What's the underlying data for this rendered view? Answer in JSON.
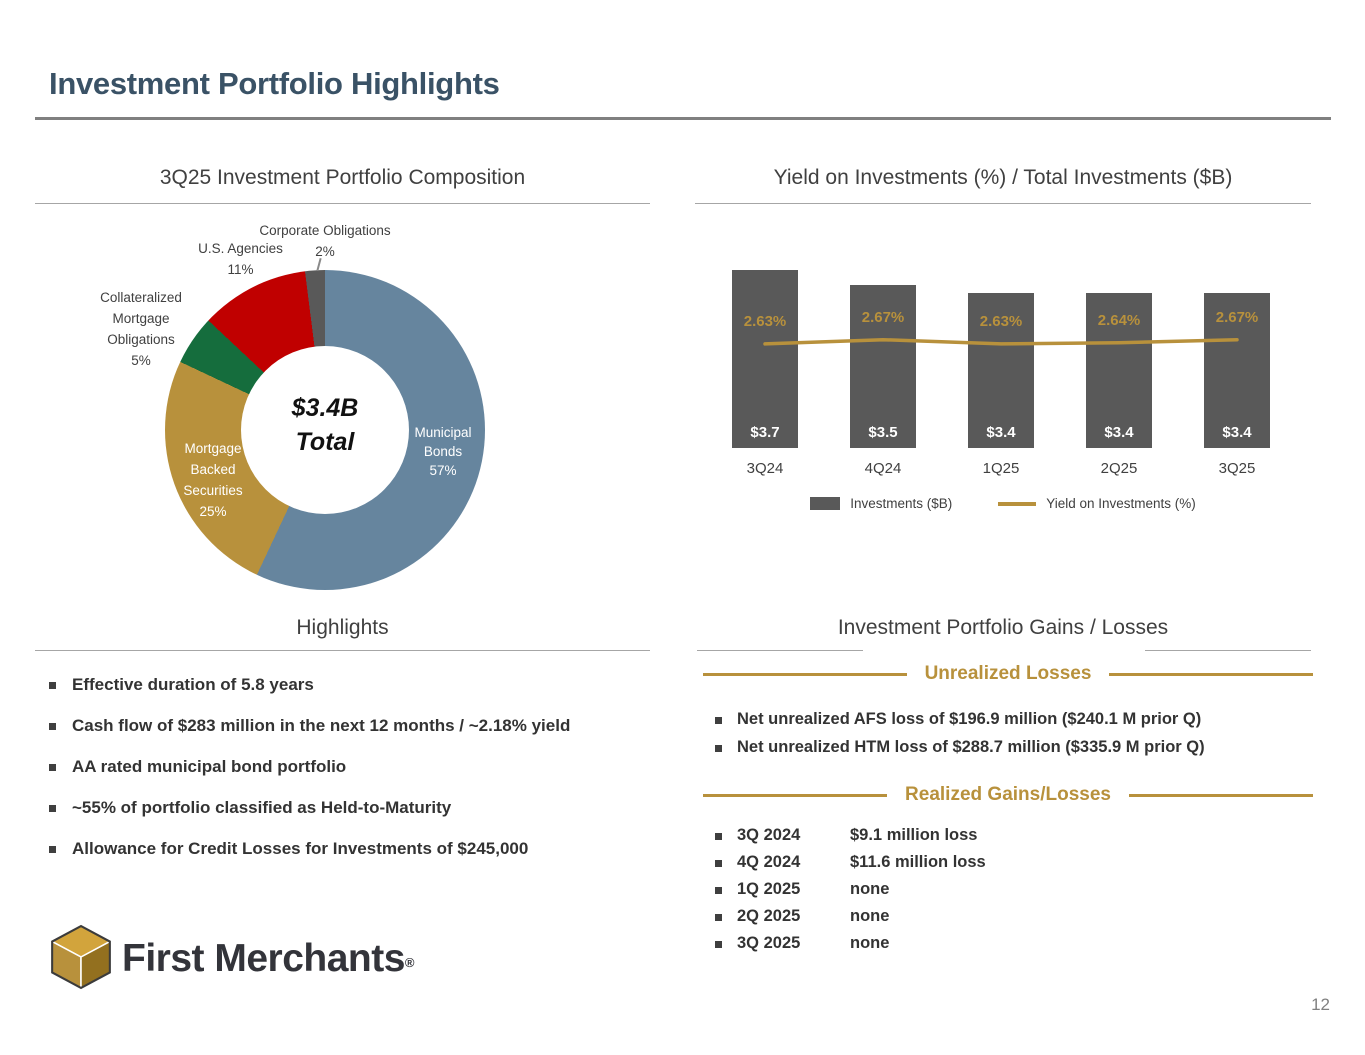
{
  "slide": {
    "title": "Investment Portfolio Highlights",
    "page_number": "12"
  },
  "chart_data": [
    {
      "type": "pie",
      "title": "3Q25 Investment Portfolio Composition",
      "center": {
        "value": "$3.4B",
        "label": "Total"
      },
      "slices": [
        {
          "label": "Municipal Bonds",
          "pct": "57%",
          "value": 57,
          "color": "#66859E"
        },
        {
          "label": "Mortgage Backed Securities",
          "pct": "25%",
          "value": 25,
          "color": "#B8913C"
        },
        {
          "label": "Collateralized Mortgage Obligations",
          "pct": "5%",
          "value": 5,
          "color": "#156D3D"
        },
        {
          "label": "U.S. Agencies",
          "pct": "11%",
          "value": 11,
          "color": "#C00000"
        },
        {
          "label": "Corporate Obligations",
          "pct": "2%",
          "value": 2,
          "color": "#595959"
        }
      ]
    },
    {
      "type": "bar",
      "title": "Yield on Investments (%) / Total Investments ($B)",
      "categories": [
        "3Q24",
        "4Q24",
        "1Q25",
        "2Q25",
        "3Q25"
      ],
      "series": [
        {
          "name": "Investments ($B)",
          "chart": "bar",
          "values": [
            3.7,
            3.5,
            3.4,
            3.4,
            3.4
          ],
          "labels": [
            "$3.7",
            "$3.5",
            "$3.4",
            "$3.4",
            "$3.4"
          ],
          "color": "#595959"
        },
        {
          "name": "Yield on Investments (%)",
          "chart": "line",
          "values": [
            2.63,
            2.67,
            2.63,
            2.64,
            2.67
          ],
          "labels": [
            "2.63%",
            "2.67%",
            "2.63%",
            "2.64%",
            "2.67%"
          ],
          "color": "#B8913C"
        }
      ],
      "legend_position": "bottom",
      "grid": false
    }
  ],
  "highlights": {
    "title": "Highlights",
    "bullets": [
      "Effective duration of 5.8 years",
      "Cash flow of $283 million in the next 12 months / ~2.18% yield",
      "AA rated municipal bond portfolio",
      "~55% of portfolio classified as Held-to-Maturity",
      "Allowance for Credit Losses for Investments of $245,000"
    ]
  },
  "gains_losses": {
    "title": "Investment Portfolio Gains / Losses",
    "unrealized": {
      "heading": "Unrealized Losses",
      "bullets": [
        "Net unrealized AFS loss of $196.9 million ($240.1 M prior Q)",
        "Net unrealized HTM loss of $288.7 million ($335.9 M prior Q)"
      ]
    },
    "realized": {
      "heading": "Realized Gains/Losses",
      "rows": [
        {
          "quarter": "3Q 2024",
          "result": "$9.1 million loss"
        },
        {
          "quarter": "4Q 2024",
          "result": "$11.6 million loss"
        },
        {
          "quarter": "1Q 2025",
          "result": "none"
        },
        {
          "quarter": "2Q 2025",
          "result": "none"
        },
        {
          "quarter": "3Q 2025",
          "result": "none"
        }
      ]
    }
  },
  "logo": {
    "brand": "First Merchants",
    "registered": "®"
  },
  "colors": {
    "title": "#3A5266",
    "gold": "#B8913C",
    "bar": "#595959",
    "text": "#333333"
  }
}
